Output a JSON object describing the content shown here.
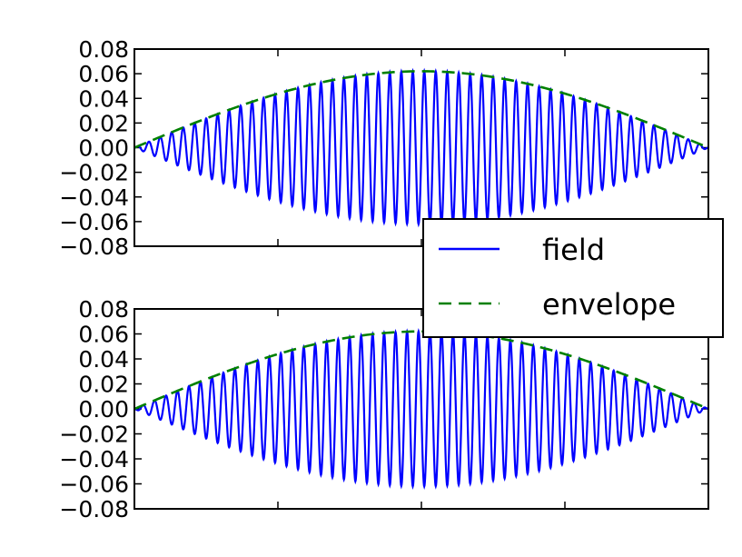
{
  "chart_data": [
    {
      "type": "line",
      "panel": "top",
      "x_range": [
        0,
        1
      ],
      "ylim": [
        -0.08,
        0.08
      ],
      "yticks": [
        "0.08",
        "0.06",
        "0.04",
        "0.02",
        "0.00",
        "−0.02",
        "−0.04",
        "−0.06",
        "−0.08"
      ],
      "x_tick_count": 5,
      "envelope_amplitude": 0.062,
      "oscillation_cycles": 50,
      "series": [
        {
          "name": "field",
          "color": "#0000ff",
          "style": "solid",
          "sign": "positive-ramp-up"
        },
        {
          "name": "envelope",
          "color": "#008000",
          "style": "dashed"
        }
      ]
    },
    {
      "type": "line",
      "panel": "bottom",
      "x_range": [
        0,
        1
      ],
      "ylim": [
        -0.08,
        0.08
      ],
      "yticks": [
        "0.08",
        "0.06",
        "0.04",
        "0.02",
        "0.00",
        "−0.02",
        "−0.04",
        "−0.06",
        "−0.08"
      ],
      "x_tick_count": 5,
      "envelope_amplitude": 0.062,
      "oscillation_cycles": 50,
      "series": [
        {
          "name": "field",
          "color": "#0000ff",
          "style": "solid"
        },
        {
          "name": "envelope",
          "color": "#008000",
          "style": "dashed"
        }
      ]
    }
  ],
  "legend": {
    "placement": "right, between panels",
    "entries": [
      {
        "label": "field",
        "color": "#0000ff",
        "style": "solid"
      },
      {
        "label": "envelope",
        "color": "#008000",
        "style": "dashed"
      }
    ]
  }
}
